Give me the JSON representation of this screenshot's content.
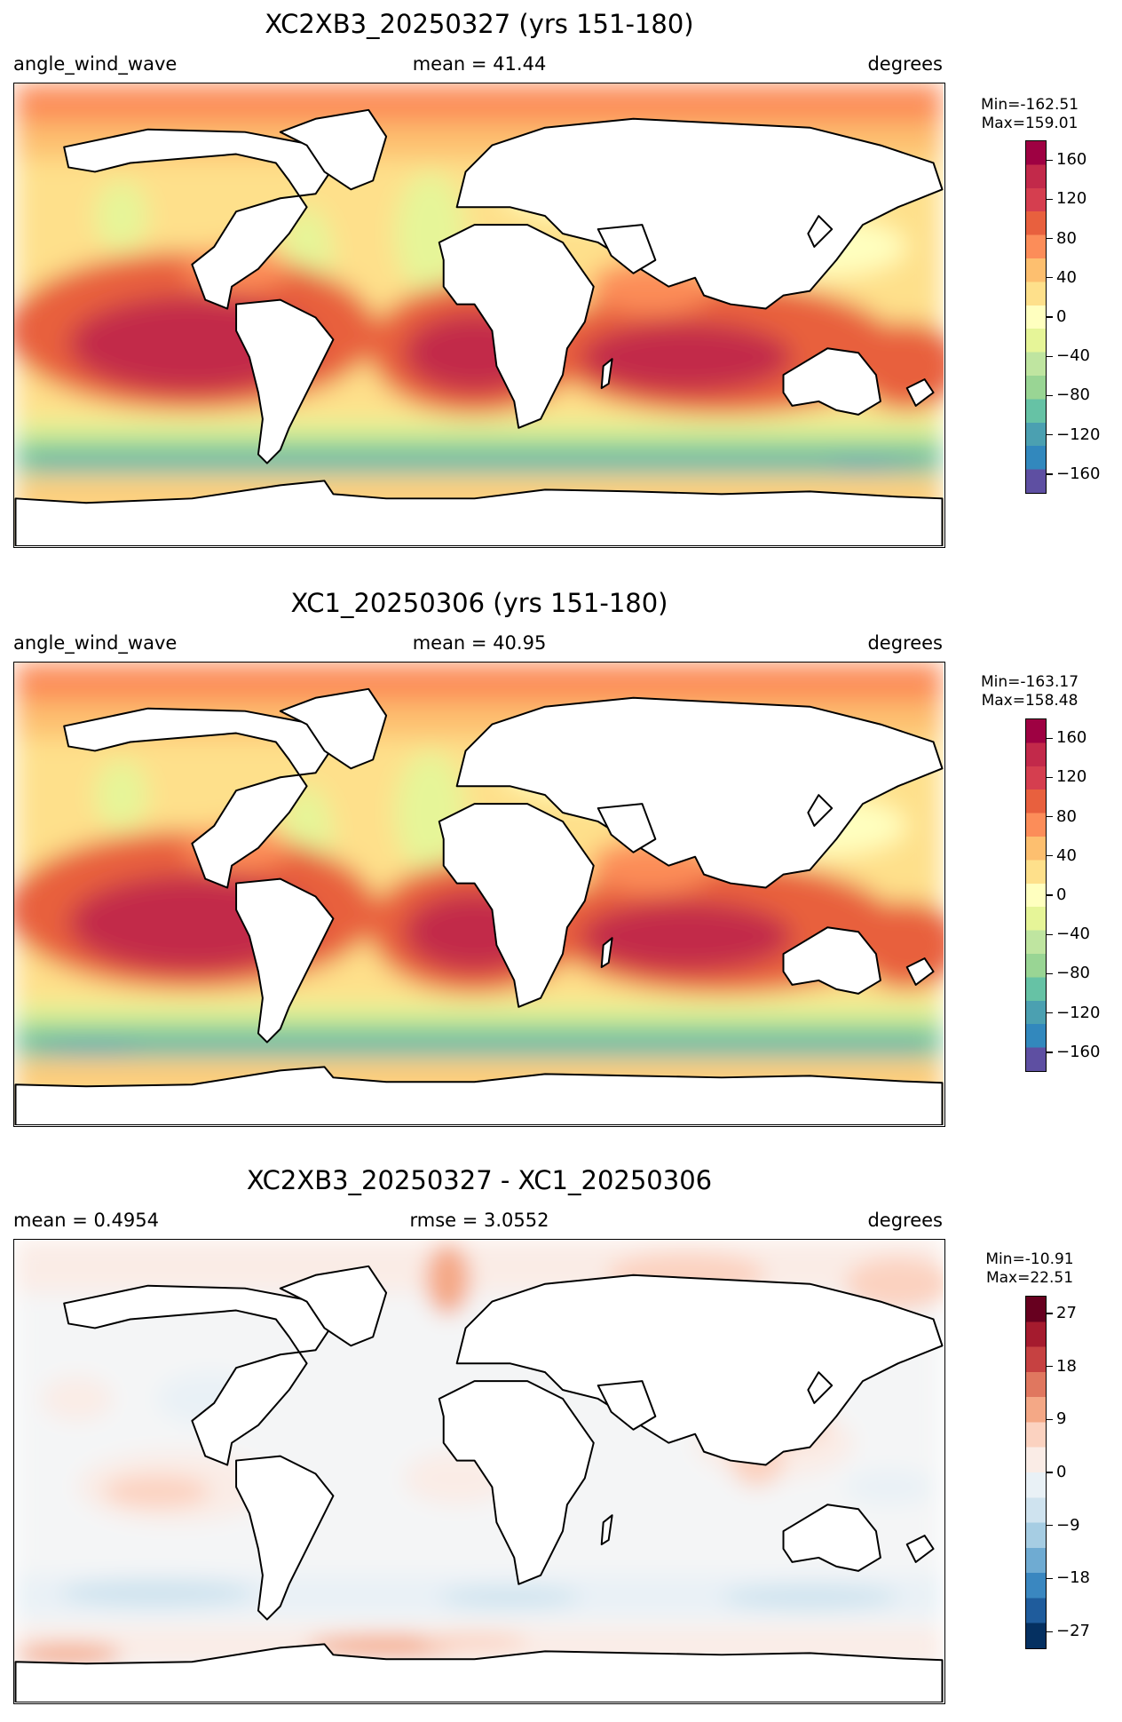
{
  "panels": [
    {
      "title": "XC2XB3_20250327 (yrs 151-180)",
      "left_label": "angle_wind_wave",
      "center_label": "mean = 41.44",
      "right_label": "degrees",
      "minmax": {
        "min": "Min=-162.51",
        "max": "Max=159.01"
      },
      "colorbar": {
        "colormap": "Spectral_r",
        "colors": [
          "#5e4fa2",
          "#3288bd",
          "#4ba0b1",
          "#66c2a5",
          "#99d594",
          "#bfe5a0",
          "#e6f598",
          "#ffffbf",
          "#fee08b",
          "#fdbf6f",
          "#fc8d59",
          "#e8603e",
          "#d53e4f",
          "#c2294a",
          "#9e0142"
        ],
        "range": [
          -180,
          180
        ],
        "ticks": [
          "160",
          "120",
          "80",
          "40",
          "0",
          "−40",
          "−80",
          "−120",
          "−160"
        ],
        "tick_values": [
          160,
          120,
          80,
          40,
          0,
          -40,
          -80,
          -120,
          -160
        ]
      }
    },
    {
      "title": "XC1_20250306 (yrs 151-180)",
      "left_label": "angle_wind_wave",
      "center_label": "mean = 40.95",
      "right_label": "degrees",
      "minmax": {
        "min": "Min=-163.17",
        "max": "Max=158.48"
      },
      "colorbar": {
        "colormap": "Spectral_r",
        "colors": [
          "#5e4fa2",
          "#3288bd",
          "#4ba0b1",
          "#66c2a5",
          "#99d594",
          "#bfe5a0",
          "#e6f598",
          "#ffffbf",
          "#fee08b",
          "#fdbf6f",
          "#fc8d59",
          "#e8603e",
          "#d53e4f",
          "#c2294a",
          "#9e0142"
        ],
        "range": [
          -180,
          180
        ],
        "ticks": [
          "160",
          "120",
          "80",
          "40",
          "0",
          "−40",
          "−80",
          "−120",
          "−160"
        ],
        "tick_values": [
          160,
          120,
          80,
          40,
          0,
          -40,
          -80,
          -120,
          -160
        ]
      }
    },
    {
      "title": "XC2XB3_20250327 - XC1_20250306",
      "left_label": "mean = 0.4954",
      "center_label": "rmse = 3.0552",
      "right_label": "degrees",
      "minmax": {
        "min": "Min=-10.91",
        "max": "Max=22.51"
      },
      "colorbar": {
        "colormap": "RdBu_r",
        "colors": [
          "#053061",
          "#1f5c9c",
          "#3a87c0",
          "#6fabd2",
          "#a6cde3",
          "#cfe3ef",
          "#e9f1f6",
          "#faece6",
          "#fbd2c0",
          "#f4a886",
          "#e0775f",
          "#c64141",
          "#a51b2e",
          "#67001f"
        ],
        "range": [
          -30,
          30
        ],
        "ticks": [
          "27",
          "18",
          "9",
          "0",
          "−9",
          "−18",
          "−27"
        ],
        "tick_values": [
          27,
          18,
          9,
          0,
          -9,
          -18,
          -27
        ]
      }
    }
  ]
}
